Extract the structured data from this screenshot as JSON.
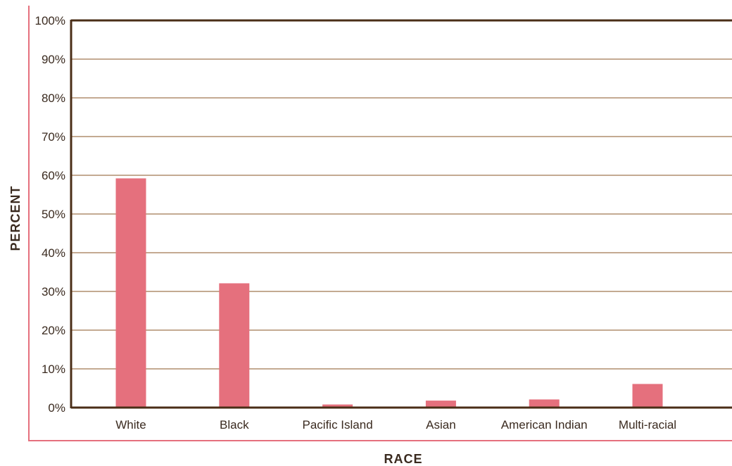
{
  "chart_data": {
    "type": "bar",
    "categories": [
      "White",
      "Black",
      "Pacific Island",
      "Asian",
      "American Indian",
      "Multi-racial"
    ],
    "values": [
      59.2,
      32.1,
      0.8,
      1.8,
      2.1,
      6.1
    ],
    "yticks": [
      "0%",
      "10%",
      "20%",
      "30%",
      "40%",
      "50%",
      "60%",
      "70%",
      "80%",
      "90%",
      "100%"
    ],
    "ylim": [
      0,
      100
    ],
    "xlabel": "RACE",
    "ylabel": "PERCENT",
    "grid": true,
    "colors": {
      "bar": "#e5707d",
      "frame_line": "#e5707d",
      "plot_border": "#4a2e17",
      "gridline": "#c4aa92",
      "text": "#3a2a1f"
    }
  }
}
